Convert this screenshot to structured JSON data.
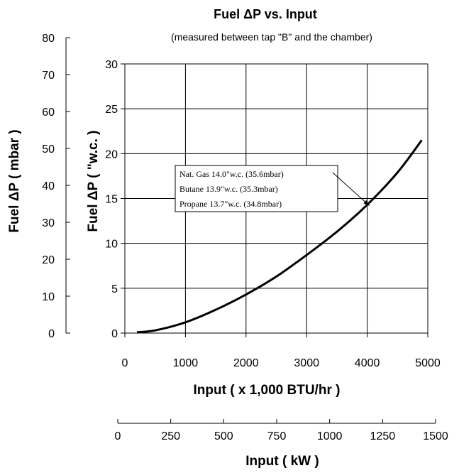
{
  "chart_data": {
    "type": "line",
    "title": "Fuel ΔP vs. Input",
    "subtitle": "(measured between tap \"B\" and the chamber)",
    "xlabel": "Input ( x 1,000 BTU/hr )",
    "ylabel": "Fuel ΔP ( \"w.c. )",
    "xlim": [
      0,
      5000
    ],
    "ylim": [
      0,
      30
    ],
    "x_ticks": [
      0,
      1000,
      2000,
      3000,
      4000,
      5000
    ],
    "y_ticks": [
      0,
      5,
      10,
      15,
      20,
      25,
      30
    ],
    "grid": true,
    "secondary_y": {
      "label": "Fuel ΔP ( mbar )",
      "range": [
        0,
        80
      ],
      "ticks": [
        0,
        10,
        20,
        30,
        40,
        50,
        60,
        70,
        80
      ]
    },
    "secondary_x": {
      "label": "Input ( kW )",
      "range": [
        0,
        1500
      ],
      "ticks": [
        0,
        250,
        500,
        750,
        1000,
        1250,
        1500
      ]
    },
    "series": [
      {
        "x": [
          200,
          500,
          1000,
          1500,
          2000,
          2500,
          3000,
          3500,
          4000,
          4500,
          4900
        ],
        "y": [
          0.1,
          0.3,
          1.2,
          2.6,
          4.3,
          6.3,
          8.7,
          11.3,
          14.3,
          17.9,
          21.5
        ]
      }
    ],
    "annotation": {
      "lines": [
        "Nat. Gas 14.0\"w.c. (35.6mbar)",
        "Butane 13.9\"w.c. (35.3mbar)",
        "Propane 13.7\"w.c. (34.8mbar)"
      ],
      "arrow_to": {
        "x": 4000,
        "y": 14.2
      }
    }
  }
}
